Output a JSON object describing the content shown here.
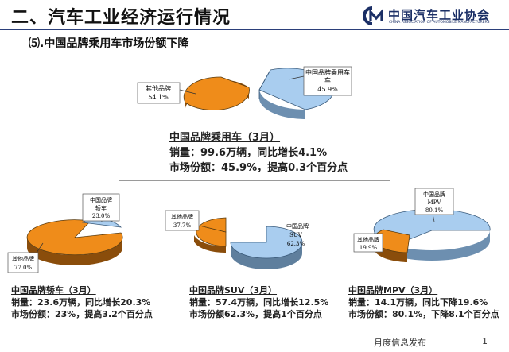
{
  "header": {
    "title": "二、汽车工业经济运行情况",
    "logo_cn": "中国汽车工业协会",
    "logo_en": "CHINA ASSOCIATION OF AUTOMOBILE MANUFACTURERS"
  },
  "section_title": "⑸.中国品牌乘用车市场份额下降",
  "charts": {
    "main": {
      "slices": [
        {
          "label": "中国品牌乘用车",
          "value": "45.9%",
          "share": 45.9,
          "color": "#a9cdef"
        },
        {
          "label": "其他品牌",
          "value": "54.1%",
          "share": 54.1,
          "color": "#ef8c1a"
        }
      ],
      "info": {
        "heading": "中国品牌乘用车（3月）",
        "line1": "销量：99.6万辆，同比增长4.1%",
        "line2": "市场份额：45.9%，提高0.3个百分点"
      }
    },
    "car": {
      "slices": [
        {
          "label": "中国品牌轿车",
          "value": "23.0%",
          "share": 23.0,
          "color": "#a9cdef"
        },
        {
          "label": "其他品牌",
          "value": "77.0%",
          "share": 77.0,
          "color": "#ef8c1a"
        }
      ],
      "info": {
        "heading": "中国品牌轿车（3月）",
        "line1": "销量：23.6万辆，同比增长20.3%",
        "line2": "市场份额：23%，提高3.2个百分点"
      }
    },
    "suv": {
      "slices": [
        {
          "label": "中国品牌SUV",
          "value": "62.3%",
          "share": 62.3,
          "color": "#a9cdef"
        },
        {
          "label": "其他品牌",
          "value": "37.7%",
          "share": 37.7,
          "color": "#ef8c1a"
        }
      ],
      "info": {
        "heading": "中国品牌SUV（3月）",
        "line1": "销量：57.4万辆，同比增长12.5%",
        "line2": "市场份额62.3%，提高1个百分点"
      }
    },
    "mpv": {
      "slices": [
        {
          "label": "中国品牌MPV",
          "value": "80.1%",
          "share": 80.1,
          "color": "#a9cdef"
        },
        {
          "label": "其他品牌",
          "value": "19.9%",
          "share": 19.9,
          "color": "#ef8c1a"
        }
      ],
      "info": {
        "heading": "中国品牌MPV（3月）",
        "line1": "销量：14.1万辆，同比下降19.6%",
        "line2": "市场份额：80.1%，下降8.1个百分点"
      }
    }
  },
  "footer": {
    "text": "月度信息发布",
    "page": "1"
  }
}
